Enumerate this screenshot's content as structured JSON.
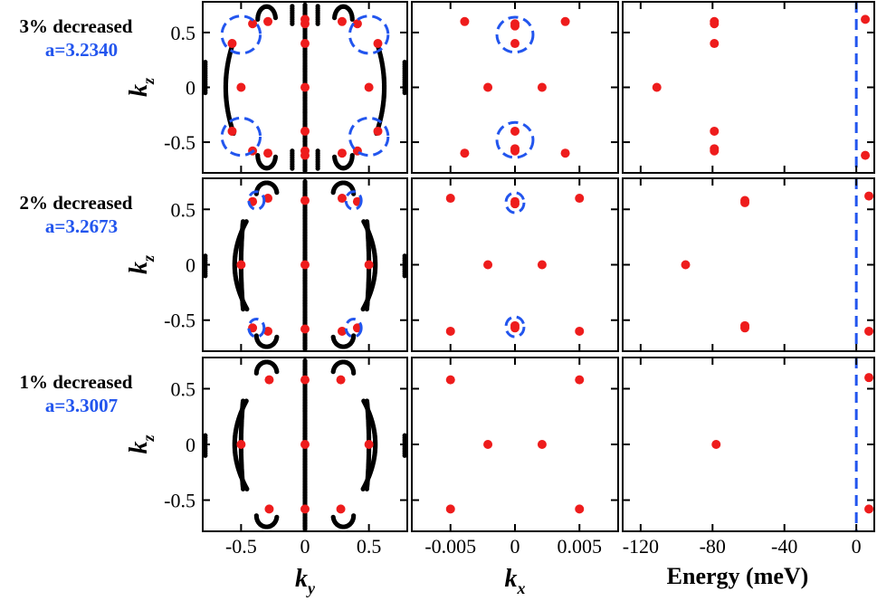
{
  "figure": {
    "rows": [
      {
        "label": "3% decreased",
        "sublabel": "a=3.2340"
      },
      {
        "label": "2% decreased",
        "sublabel": "a=3.2673"
      },
      {
        "label": "1% decreased",
        "sublabel": "a=3.3007"
      }
    ],
    "colors": {
      "arc": "#000000",
      "point": "#ee1c1c",
      "circle": "#2255ee",
      "label_blue": "#2255ee"
    }
  },
  "chart_data": [
    {
      "type": "scatter",
      "name": "ky-kz",
      "xlabel": "k",
      "xlabel_sub": "y",
      "ylabel": "k",
      "ylabel_sub": "z",
      "xlim": [
        -0.8,
        0.8
      ],
      "ylim": [
        -0.78,
        0.78
      ],
      "xticks": [
        -0.5,
        0,
        0.5
      ],
      "xtick_labels": [
        "-0.5",
        "0",
        "0.5"
      ],
      "yticks": [
        -0.5,
        0,
        0.5
      ],
      "ytick_labels": [
        "-0.5",
        "0",
        "0.5"
      ],
      "rows": [
        {
          "red_points": [
            [
              0,
              0.62
            ],
            [
              0,
              0.58
            ],
            [
              0,
              0.4
            ],
            [
              0,
              0
            ],
            [
              0,
              -0.4
            ],
            [
              0,
              -0.58
            ],
            [
              0,
              -0.62
            ],
            [
              -0.29,
              0.6
            ],
            [
              0.29,
              0.6
            ],
            [
              -0.29,
              -0.6
            ],
            [
              0.29,
              -0.6
            ],
            [
              -0.57,
              0.4
            ],
            [
              0.57,
              0.4
            ],
            [
              -0.57,
              -0.4
            ],
            [
              0.57,
              -0.4
            ],
            [
              -0.5,
              0
            ],
            [
              0.5,
              0
            ],
            [
              -0.41,
              0.58
            ],
            [
              0.41,
              0.58
            ],
            [
              -0.41,
              -0.58
            ],
            [
              0.41,
              -0.58
            ]
          ],
          "circles": [
            [
              -0.5,
              0.48,
              0.15,
              0.17
            ],
            [
              0.5,
              0.48,
              0.15,
              0.17
            ],
            [
              -0.5,
              -0.45,
              0.15,
              0.17
            ],
            [
              0.5,
              -0.45,
              0.15,
              0.17
            ]
          ]
        },
        {
          "red_points": [
            [
              0,
              0.58
            ],
            [
              0,
              0
            ],
            [
              0,
              -0.58
            ],
            [
              -0.5,
              0
            ],
            [
              0.5,
              0
            ],
            [
              -0.41,
              0.57
            ],
            [
              0.41,
              0.57
            ],
            [
              -0.41,
              -0.57
            ],
            [
              0.41,
              -0.57
            ],
            [
              -0.29,
              0.6
            ],
            [
              0.29,
              0.6
            ],
            [
              -0.29,
              -0.6
            ],
            [
              0.29,
              -0.6
            ]
          ],
          "circles": [
            [
              -0.38,
              0.58,
              0.06,
              0.08
            ],
            [
              0.38,
              0.58,
              0.06,
              0.08
            ],
            [
              -0.38,
              -0.57,
              0.06,
              0.08
            ],
            [
              0.38,
              -0.57,
              0.06,
              0.08
            ]
          ]
        },
        {
          "red_points": [
            [
              0,
              0.58
            ],
            [
              0,
              0
            ],
            [
              0,
              -0.58
            ],
            [
              -0.5,
              0
            ],
            [
              0.5,
              0
            ],
            [
              -0.28,
              0.58
            ],
            [
              0.28,
              0.58
            ],
            [
              -0.28,
              -0.58
            ],
            [
              0.28,
              -0.58
            ]
          ],
          "circles": []
        }
      ]
    },
    {
      "type": "scatter",
      "name": "kx-kz",
      "xlabel": "k",
      "xlabel_sub": "x",
      "xlim": [
        -0.008,
        0.008
      ],
      "ylim": [
        -0.78,
        0.78
      ],
      "xticks": [
        -0.005,
        0,
        0.005
      ],
      "xtick_labels": [
        "-0.005",
        "0",
        "0.005"
      ],
      "rows": [
        {
          "red_points": [
            [
              0,
              0.58
            ],
            [
              0,
              0.56
            ],
            [
              0,
              0.4
            ],
            [
              0,
              -0.4
            ],
            [
              0,
              -0.56
            ],
            [
              0,
              -0.58
            ],
            [
              -0.0039,
              0.6
            ],
            [
              0.0039,
              0.6
            ],
            [
              -0.0039,
              -0.6
            ],
            [
              0.0039,
              -0.6
            ],
            [
              -0.0021,
              0
            ],
            [
              0.0021,
              0
            ]
          ],
          "circles": [
            [
              0,
              0.48,
              0.0014,
              0.16
            ],
            [
              0,
              -0.48,
              0.0014,
              0.16
            ]
          ]
        },
        {
          "red_points": [
            [
              0,
              0.57
            ],
            [
              0,
              0.55
            ],
            [
              0,
              -0.55
            ],
            [
              0,
              -0.57
            ],
            [
              -0.005,
              0.6
            ],
            [
              0.005,
              0.6
            ],
            [
              -0.005,
              -0.6
            ],
            [
              0.005,
              -0.6
            ],
            [
              -0.0021,
              0
            ],
            [
              0.0021,
              0
            ]
          ],
          "circles": [
            [
              0,
              0.56,
              0.0007,
              0.09
            ],
            [
              0,
              -0.56,
              0.0007,
              0.09
            ]
          ]
        },
        {
          "red_points": [
            [
              -0.005,
              0.58
            ],
            [
              0.005,
              0.58
            ],
            [
              -0.005,
              -0.58
            ],
            [
              0.005,
              -0.58
            ],
            [
              -0.0021,
              0
            ],
            [
              0.0021,
              0
            ]
          ],
          "circles": []
        }
      ]
    },
    {
      "type": "scatter",
      "name": "energy-kz",
      "xlabel": "Energy (meV)",
      "xlim": [
        -130,
        10
      ],
      "ylim": [
        -0.78,
        0.78
      ],
      "xticks": [
        -120,
        -80,
        -40,
        0
      ],
      "xtick_labels": [
        "-120",
        "-80",
        "-40",
        "0"
      ],
      "reference_line_x": 0,
      "rows": [
        {
          "red_points": [
            [
              -79,
              0.6
            ],
            [
              -79,
              0.58
            ],
            [
              -79,
              0.4
            ],
            [
              -111,
              0
            ],
            [
              -79,
              -0.4
            ],
            [
              -79,
              -0.56
            ],
            [
              -79,
              -0.58
            ],
            [
              5,
              0.62
            ],
            [
              5,
              -0.62
            ]
          ]
        },
        {
          "red_points": [
            [
              -62,
              0.58
            ],
            [
              -62,
              0.56
            ],
            [
              -95,
              0
            ],
            [
              -62,
              -0.55
            ],
            [
              -62,
              -0.57
            ],
            [
              7,
              0.62
            ],
            [
              7,
              -0.6
            ]
          ]
        },
        {
          "red_points": [
            [
              -78,
              0
            ],
            [
              7,
              0.6
            ],
            [
              7,
              -0.58
            ]
          ]
        }
      ]
    }
  ]
}
